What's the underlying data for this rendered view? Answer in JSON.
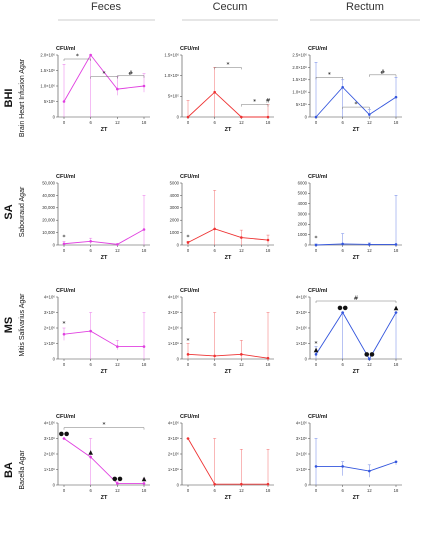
{
  "columns": [
    "Feces",
    "Cecum",
    "Rectum"
  ],
  "rows": [
    {
      "abbr": "BHI",
      "name": "Brain Heart Infusion Agar"
    },
    {
      "abbr": "SA",
      "name": "Sabouraud Agar"
    },
    {
      "abbr": "MS",
      "name": "Mitis Salivarius Agar"
    },
    {
      "abbr": "BA",
      "name": "Bacella Agar"
    }
  ],
  "colors": {
    "Feces": "#e040e0",
    "Cecum": "#ee3333",
    "Rectum": "#3355dd"
  },
  "chart_data": [
    {
      "type": "line",
      "row": "BHI",
      "column": "Feces",
      "color": "#e040e0",
      "ylabel": "CFU/ml",
      "xlabel": "ZT",
      "x": [
        0,
        6,
        12,
        18
      ],
      "values": [
        500000,
        2000000,
        900000,
        1000000
      ],
      "err_up": [
        1700000,
        2000000,
        1300000,
        1400000
      ],
      "err_lo": [
        0,
        0,
        700000,
        800000
      ],
      "ylim": [
        0,
        2000000
      ],
      "yticks": [
        0,
        500000,
        1000000,
        1500000,
        2000000
      ],
      "ytick_labels": [
        "0",
        "5×10⁵",
        "1.0×10⁶",
        "1.5×10⁶",
        "2.0×10⁶"
      ],
      "xticks": [
        "0",
        "6",
        "12",
        "18"
      ],
      "annotations": [
        {
          "from": 0,
          "to": 6,
          "y": 2050000,
          "text": "*"
        },
        {
          "from": 6,
          "to": 12,
          "y": 1300000,
          "text": "*"
        },
        {
          "from": 12,
          "to": 18,
          "y": 1330000,
          "text": "#"
        }
      ],
      "point_marks": []
    },
    {
      "type": "line",
      "row": "BHI",
      "column": "Cecum",
      "color": "#ee3333",
      "ylabel": "CFU/ml",
      "xlabel": "ZT",
      "x": [
        0,
        6,
        12,
        18
      ],
      "values": [
        0,
        600000,
        0,
        0
      ],
      "err_up": [
        400000,
        1200000,
        0,
        300000
      ],
      "err_lo": [
        0,
        0,
        0,
        0
      ],
      "ylim": [
        0,
        1500000
      ],
      "yticks": [
        0,
        500000,
        1000000,
        1500000
      ],
      "ytick_labels": [
        "0",
        "5×10⁵",
        "1.0×10⁶",
        "1.5×10⁶"
      ],
      "xticks": [
        "0",
        "6",
        "12",
        "18"
      ],
      "annotations": [
        {
          "from": 6,
          "to": 12,
          "y": 1200000,
          "text": "*"
        },
        {
          "from": 12,
          "to": 18,
          "y": 300000,
          "text": "*"
        },
        {
          "from": 18,
          "to": 18,
          "y": 330000,
          "text": "#"
        }
      ],
      "point_marks": []
    },
    {
      "type": "line",
      "row": "BHI",
      "column": "Rectum",
      "color": "#3355dd",
      "ylabel": "CFU/ml",
      "xlabel": "ZT",
      "x": [
        0,
        6,
        12,
        18
      ],
      "values": [
        0,
        1200000,
        100000,
        800000
      ],
      "err_up": [
        2200000,
        1500000,
        300000,
        1600000
      ],
      "err_lo": [
        0,
        0,
        0,
        0
      ],
      "ylim": [
        0,
        2500000
      ],
      "yticks": [
        0,
        500000,
        1000000,
        1500000,
        2000000,
        2500000
      ],
      "ytick_labels": [
        "0",
        "5×10⁵",
        "1.0×10⁶",
        "1.5×10⁶",
        "2.0×10⁶",
        "2.5×10⁶"
      ],
      "xticks": [
        "0",
        "6",
        "12",
        "18"
      ],
      "annotations": [
        {
          "from": 0,
          "to": 6,
          "y": 1600000,
          "text": "*"
        },
        {
          "from": 6,
          "to": 12,
          "y": 400000,
          "text": "*"
        },
        {
          "from": 12,
          "to": 18,
          "y": 1700000,
          "text": "#"
        }
      ],
      "point_marks": []
    },
    {
      "type": "line",
      "row": "SA",
      "column": "Feces",
      "color": "#e040e0",
      "ylabel": "CFU/ml",
      "xlabel": "ZT",
      "x": [
        0,
        6,
        12,
        18
      ],
      "values": [
        1000,
        3000,
        500,
        12500
      ],
      "err_up": [
        3000,
        5500,
        1000,
        40000
      ],
      "err_lo": [
        0,
        1000,
        0,
        0
      ],
      "ylim": [
        0,
        50000
      ],
      "yticks": [
        0,
        10000,
        20000,
        30000,
        40000,
        50000
      ],
      "ytick_labels": [
        "0",
        "10,000",
        "20,000",
        "30,000",
        "40,000",
        "50,000"
      ],
      "xticks": [
        "0",
        "6",
        "12",
        "18"
      ],
      "annotations": [
        {
          "from": 0,
          "to": 0,
          "y": 4000,
          "text": "*"
        }
      ],
      "point_marks": []
    },
    {
      "type": "line",
      "row": "SA",
      "column": "Cecum",
      "color": "#ee3333",
      "ylabel": "CFU/ml",
      "xlabel": "ZT",
      "x": [
        0,
        6,
        12,
        18
      ],
      "values": [
        200,
        1300,
        600,
        400
      ],
      "err_up": [
        300,
        4400,
        1200,
        800
      ],
      "err_lo": [
        0,
        0,
        0,
        100
      ],
      "ylim": [
        0,
        5000
      ],
      "yticks": [
        0,
        1000,
        2000,
        3000,
        4000,
        5000
      ],
      "ytick_labels": [
        "0",
        "1000",
        "2000",
        "3000",
        "4000",
        "5000"
      ],
      "xticks": [
        "0",
        "6",
        "12",
        "18"
      ],
      "annotations": [
        {
          "from": 0,
          "to": 0,
          "y": 400,
          "text": "*"
        }
      ],
      "point_marks": []
    },
    {
      "type": "line",
      "row": "SA",
      "column": "Rectum",
      "color": "#3355dd",
      "ylabel": "CFU/ml",
      "xlabel": "ZT",
      "x": [
        0,
        6,
        12,
        18
      ],
      "values": [
        0,
        100,
        50,
        50
      ],
      "err_up": [
        100,
        1100,
        200,
        4800
      ],
      "err_lo": [
        0,
        0,
        0,
        0
      ],
      "ylim": [
        0,
        6000
      ],
      "yticks": [
        0,
        1000,
        2000,
        3000,
        4000,
        5000,
        6000
      ],
      "ytick_labels": [
        "0",
        "1000",
        "2000",
        "3000",
        "4000",
        "5000",
        "6000"
      ],
      "xticks": [
        "0",
        "6",
        "12",
        "18"
      ],
      "annotations": [
        {
          "from": 0,
          "to": 0,
          "y": 400,
          "text": "*"
        }
      ],
      "point_marks": []
    },
    {
      "type": "line",
      "row": "MS",
      "column": "Feces",
      "color": "#e040e0",
      "ylabel": "CFU/ml",
      "xlabel": "ZT",
      "x": [
        0,
        6,
        12,
        18
      ],
      "values": [
        1600000,
        1800000,
        800000,
        800000
      ],
      "err_up": [
        2000000,
        3000000,
        1200000,
        3000000
      ],
      "err_lo": [
        1200000,
        0,
        600000,
        0
      ],
      "ylim": [
        0,
        4000000
      ],
      "yticks": [
        0,
        1000000,
        2000000,
        3000000,
        4000000
      ],
      "ytick_labels": [
        "0",
        "1×10⁶",
        "2×10⁶",
        "3×10⁶",
        "4×10⁶"
      ],
      "xticks": [
        "0",
        "6",
        "12",
        "18"
      ],
      "annotations": [
        {
          "from": 0,
          "to": 0,
          "y": 2100000,
          "text": "*"
        }
      ],
      "point_marks": []
    },
    {
      "type": "line",
      "row": "MS",
      "column": "Cecum",
      "color": "#ee3333",
      "ylabel": "CFU/ml",
      "xlabel": "ZT",
      "x": [
        0,
        6,
        12,
        18
      ],
      "values": [
        300000,
        200000,
        300000,
        50000
      ],
      "err_up": [
        1000000,
        3000000,
        1200000,
        3000000
      ],
      "err_lo": [
        0,
        0,
        0,
        0
      ],
      "ylim": [
        0,
        4000000
      ],
      "yticks": [
        0,
        1000000,
        2000000,
        3000000,
        4000000
      ],
      "ytick_labels": [
        "0",
        "1×10⁶",
        "2×10⁶",
        "3×10⁶",
        "4×10⁶"
      ],
      "xticks": [
        "0",
        "6",
        "12",
        "18"
      ],
      "annotations": [
        {
          "from": 0,
          "to": 0,
          "y": 1000000,
          "text": "*"
        }
      ],
      "point_marks": []
    },
    {
      "type": "line",
      "row": "MS",
      "column": "Rectum",
      "color": "#3355dd",
      "ylabel": "CFU/ml",
      "xlabel": "ZT",
      "x": [
        0,
        6,
        12,
        18
      ],
      "values": [
        300000,
        3000000,
        0,
        3000000
      ],
      "err_up": [
        800000,
        3000000,
        0,
        3000000
      ],
      "err_lo": [
        0,
        0,
        0,
        0
      ],
      "ylim": [
        0,
        4000000
      ],
      "yticks": [
        0,
        1000000,
        2000000,
        3000000,
        4000000
      ],
      "ytick_labels": [
        "0",
        "1×10⁶",
        "2×10⁶",
        "3×10⁶",
        "4×10⁶"
      ],
      "xticks": [
        "0",
        "6",
        "12",
        "18"
      ],
      "annotations": [
        {
          "from": 0,
          "to": 0,
          "y": 800000,
          "text": "*"
        },
        {
          "from": 0,
          "to": 18,
          "y": 3800000,
          "text": "#"
        }
      ],
      "point_marks": [
        {
          "x": 0,
          "text": "▲"
        },
        {
          "x": 6,
          "text": "●●"
        },
        {
          "x": 12,
          "text": "●●"
        },
        {
          "x": 18,
          "text": "▲"
        }
      ]
    },
    {
      "type": "line",
      "row": "BA",
      "column": "Feces",
      "color": "#e040e0",
      "ylabel": "CFU/ml",
      "xlabel": "ZT",
      "x": [
        0,
        6,
        12,
        18
      ],
      "values": [
        3000000,
        1800000,
        100000,
        100000
      ],
      "err_up": [
        3000000,
        3000000,
        200000,
        400000
      ],
      "err_lo": [
        3000000,
        0,
        0,
        0
      ],
      "ylim": [
        0,
        4000000
      ],
      "yticks": [
        0,
        1000000,
        2000000,
        3000000,
        4000000
      ],
      "ytick_labels": [
        "0",
        "1×10⁶",
        "2×10⁶",
        "3×10⁶",
        "4×10⁶"
      ],
      "xticks": [
        "0",
        "6",
        "12",
        "18"
      ],
      "annotations": [
        {
          "from": 0,
          "to": 18,
          "y": 3700000,
          "text": "*"
        }
      ],
      "point_marks": [
        {
          "x": 0,
          "text": "●●"
        },
        {
          "x": 6,
          "text": "▲"
        },
        {
          "x": 12,
          "text": "●●"
        },
        {
          "x": 18,
          "text": "▲"
        }
      ]
    },
    {
      "type": "line",
      "row": "BA",
      "column": "Cecum",
      "color": "#ee3333",
      "ylabel": "CFU/ml",
      "xlabel": "ZT",
      "x": [
        0,
        6,
        12,
        18
      ],
      "values": [
        3000000,
        50000,
        50000,
        50000
      ],
      "err_up": [
        3000000,
        3000000,
        2300000,
        2300000
      ],
      "err_lo": [
        3000000,
        0,
        0,
        0
      ],
      "ylim": [
        0,
        4000000
      ],
      "yticks": [
        0,
        1000000,
        2000000,
        3000000,
        4000000
      ],
      "ytick_labels": [
        "0",
        "1×10⁶",
        "2×10⁶",
        "3×10⁶",
        "4×10⁶"
      ],
      "xticks": [
        "0",
        "6",
        "12",
        "18"
      ],
      "annotations": [],
      "point_marks": []
    },
    {
      "type": "line",
      "row": "BA",
      "column": "Rectum",
      "color": "#3355dd",
      "ylabel": "CFU/ml",
      "xlabel": "ZT",
      "x": [
        0,
        6,
        12,
        18
      ],
      "values": [
        1200000,
        1200000,
        900000,
        1500000
      ],
      "err_up": [
        3000000,
        1500000,
        1300000,
        1500000
      ],
      "err_lo": [
        0,
        600000,
        500000,
        1300000
      ],
      "ylim": [
        0,
        4000000
      ],
      "yticks": [
        0,
        1000000,
        2000000,
        3000000,
        4000000
      ],
      "ytick_labels": [
        "0",
        "1×10⁶",
        "2×10⁶",
        "3×10⁶",
        "4×10⁶"
      ],
      "xticks": [
        "0",
        "6",
        "12",
        "18"
      ],
      "annotations": [],
      "point_marks": []
    }
  ]
}
